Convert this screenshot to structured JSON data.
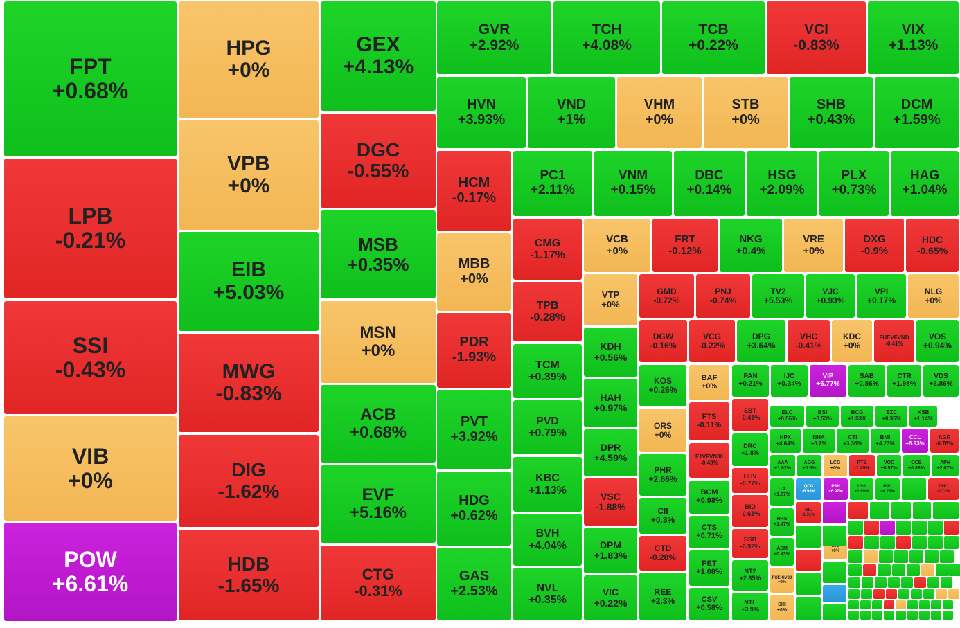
{
  "colors": {
    "up": "#17c922",
    "down": "#e82e2e",
    "reference": "#f5bd5e",
    "ceiling": "#c01bd2",
    "floor": "#3aa0e0"
  },
  "chart_data": {
    "type": "treemap",
    "title": "",
    "tiles": [
      {
        "ticker": "FPT",
        "change": "+0.68%",
        "status": "up"
      },
      {
        "ticker": "LPB",
        "change": "-0.21%",
        "status": "down"
      },
      {
        "ticker": "SSI",
        "change": "-0.43%",
        "status": "down"
      },
      {
        "ticker": "VIB",
        "change": "+0%",
        "status": "ref"
      },
      {
        "ticker": "POW",
        "change": "+6.61%",
        "status": "ceil"
      },
      {
        "ticker": "HPG",
        "change": "+0%",
        "status": "ref"
      },
      {
        "ticker": "VPB",
        "change": "+0%",
        "status": "ref"
      },
      {
        "ticker": "EIB",
        "change": "+5.03%",
        "status": "up"
      },
      {
        "ticker": "MWG",
        "change": "-0.83%",
        "status": "down"
      },
      {
        "ticker": "DIG",
        "change": "-1.62%",
        "status": "down"
      },
      {
        "ticker": "HDB",
        "change": "-1.65%",
        "status": "down"
      },
      {
        "ticker": "GEX",
        "change": "+4.13%",
        "status": "up"
      },
      {
        "ticker": "DGC",
        "change": "-0.55%",
        "status": "down"
      },
      {
        "ticker": "MSB",
        "change": "+0.35%",
        "status": "up"
      },
      {
        "ticker": "MSN",
        "change": "+0%",
        "status": "ref"
      },
      {
        "ticker": "ACB",
        "change": "+0.68%",
        "status": "up"
      },
      {
        "ticker": "EVF",
        "change": "+5.16%",
        "status": "up"
      },
      {
        "ticker": "CTG",
        "change": "-0.31%",
        "status": "down"
      },
      {
        "ticker": "GVR",
        "change": "+2.92%",
        "status": "up"
      },
      {
        "ticker": "TCH",
        "change": "+4.08%",
        "status": "up"
      },
      {
        "ticker": "TCB",
        "change": "+0.22%",
        "status": "up"
      },
      {
        "ticker": "VCI",
        "change": "-0.83%",
        "status": "down"
      },
      {
        "ticker": "VIX",
        "change": "+1.13%",
        "status": "up"
      },
      {
        "ticker": "HVN",
        "change": "+3.93%",
        "status": "up"
      },
      {
        "ticker": "VND",
        "change": "+1%",
        "status": "up"
      },
      {
        "ticker": "VHM",
        "change": "+0%",
        "status": "ref"
      },
      {
        "ticker": "STB",
        "change": "+0%",
        "status": "ref"
      },
      {
        "ticker": "SHB",
        "change": "+0.43%",
        "status": "up"
      },
      {
        "ticker": "DCM",
        "change": "+1.59%",
        "status": "up"
      },
      {
        "ticker": "HCM",
        "change": "-0.17%",
        "status": "down"
      },
      {
        "ticker": "MBB",
        "change": "+0%",
        "status": "ref"
      },
      {
        "ticker": "PDR",
        "change": "-1.93%",
        "status": "down"
      },
      {
        "ticker": "PVT",
        "change": "+3.92%",
        "status": "up"
      },
      {
        "ticker": "HDG",
        "change": "+0.62%",
        "status": "up"
      },
      {
        "ticker": "GAS",
        "change": "+2.53%",
        "status": "up"
      },
      {
        "ticker": "PC1",
        "change": "+2.11%",
        "status": "up"
      },
      {
        "ticker": "VNM",
        "change": "+0.15%",
        "status": "up"
      },
      {
        "ticker": "DBC",
        "change": "+0.14%",
        "status": "up"
      },
      {
        "ticker": "HSG",
        "change": "+2.09%",
        "status": "up"
      },
      {
        "ticker": "PLX",
        "change": "+0.73%",
        "status": "up"
      },
      {
        "ticker": "HAG",
        "change": "+1.04%",
        "status": "up"
      },
      {
        "ticker": "CMG",
        "change": "-1.17%",
        "status": "down"
      },
      {
        "ticker": "VCB",
        "change": "+0%",
        "status": "ref"
      },
      {
        "ticker": "FRT",
        "change": "-0.12%",
        "status": "down"
      },
      {
        "ticker": "NKG",
        "change": "+0.4%",
        "status": "up"
      },
      {
        "ticker": "VRE",
        "change": "+0%",
        "status": "ref"
      },
      {
        "ticker": "DXG",
        "change": "-0.9%",
        "status": "down"
      },
      {
        "ticker": "HDC",
        "change": "-0.65%",
        "status": "down"
      },
      {
        "ticker": "TPB",
        "change": "-0.28%",
        "status": "down"
      },
      {
        "ticker": "VTP",
        "change": "+0%",
        "status": "ref"
      },
      {
        "ticker": "GMD",
        "change": "-0.72%",
        "status": "down"
      },
      {
        "ticker": "PNJ",
        "change": "-0.74%",
        "status": "down"
      },
      {
        "ticker": "TV2",
        "change": "+5.53%",
        "status": "up"
      },
      {
        "ticker": "VJC",
        "change": "+0.93%",
        "status": "up"
      },
      {
        "ticker": "VPI",
        "change": "+0.17%",
        "status": "up"
      },
      {
        "ticker": "NLG",
        "change": "+0%",
        "status": "ref"
      },
      {
        "ticker": "DGW",
        "change": "-0.16%",
        "status": "down"
      },
      {
        "ticker": "VCG",
        "change": "-0.22%",
        "status": "down"
      },
      {
        "ticker": "DPG",
        "change": "+3.64%",
        "status": "up"
      },
      {
        "ticker": "VHC",
        "change": "-0.41%",
        "status": "down"
      },
      {
        "ticker": "KDC",
        "change": "+0%",
        "status": "ref"
      },
      {
        "ticker": "FUEVFVND",
        "change": "-0.41%",
        "status": "down"
      },
      {
        "ticker": "VOS",
        "change": "+0.94%",
        "status": "up"
      },
      {
        "ticker": "TCM",
        "change": "+0.39%",
        "status": "up"
      },
      {
        "ticker": "KDH",
        "change": "+0.56%",
        "status": "up"
      },
      {
        "ticker": "KOS",
        "change": "+0.26%",
        "status": "up"
      },
      {
        "ticker": "BAF",
        "change": "+0%",
        "status": "ref"
      },
      {
        "ticker": "PAN",
        "change": "+0.21%",
        "status": "up"
      },
      {
        "ticker": "IJC",
        "change": "+0.34%",
        "status": "up"
      },
      {
        "ticker": "VIP",
        "change": "+6.77%",
        "status": "ceil"
      },
      {
        "ticker": "SAB",
        "change": "+0.86%",
        "status": "up"
      },
      {
        "ticker": "CTR",
        "change": "+1.98%",
        "status": "up"
      },
      {
        "ticker": "VDS",
        "change": "+3.86%",
        "status": "up"
      },
      {
        "ticker": "PVD",
        "change": "+0.79%",
        "status": "up"
      },
      {
        "ticker": "HAH",
        "change": "+0.97%",
        "status": "up"
      },
      {
        "ticker": "ORS",
        "change": "+0%",
        "status": "ref"
      },
      {
        "ticker": "FTS",
        "change": "-0.11%",
        "status": "down"
      },
      {
        "ticker": "SBT",
        "change": "-0.41%",
        "status": "down"
      },
      {
        "ticker": "ELC",
        "change": "+0.55%",
        "status": "up"
      },
      {
        "ticker": "BSI",
        "change": "+0.53%",
        "status": "up"
      },
      {
        "ticker": "BCG",
        "change": "+1.53%",
        "status": "up"
      },
      {
        "ticker": "SZC",
        "change": "+0.35%",
        "status": "up"
      },
      {
        "ticker": "KSB",
        "change": "+1.14%",
        "status": "up"
      },
      {
        "ticker": "HPX",
        "change": "+4.64%",
        "status": "up"
      },
      {
        "ticker": "NHA",
        "change": "+0.7%",
        "status": "up"
      },
      {
        "ticker": "CTI",
        "change": "+3.36%",
        "status": "up"
      },
      {
        "ticker": "BMI",
        "change": "+4.23%",
        "status": "up"
      },
      {
        "ticker": "CCL",
        "change": "+6.93%",
        "status": "ceil"
      },
      {
        "ticker": "AGR",
        "change": "-0.76%",
        "status": "down"
      },
      {
        "ticker": "KBC",
        "change": "+1.13%",
        "status": "up"
      },
      {
        "ticker": "DPR",
        "change": "+4.59%",
        "status": "up"
      },
      {
        "ticker": "PHR",
        "change": "+2.66%",
        "status": "up"
      },
      {
        "ticker": "E1VFVN30",
        "change": "-0.49%",
        "status": "down"
      },
      {
        "ticker": "DRC",
        "change": "+1.8%",
        "status": "up"
      },
      {
        "ticker": "AAA",
        "change": "+1.82%",
        "status": "up"
      },
      {
        "ticker": "AGG",
        "change": "+0.5%",
        "status": "up"
      },
      {
        "ticker": "LCG",
        "change": "+0%",
        "status": "ref"
      },
      {
        "ticker": "PTB",
        "change": "-1.29%",
        "status": "down"
      },
      {
        "ticker": "VOC",
        "change": "+0.57%",
        "status": "up"
      },
      {
        "ticker": "OCB",
        "change": "+0.88%",
        "status": "up"
      },
      {
        "ticker": "APH",
        "change": "+2.07%",
        "status": "up"
      },
      {
        "ticker": "BVH",
        "change": "+4.04%",
        "status": "up"
      },
      {
        "ticker": "VSC",
        "change": "-1.88%",
        "status": "down"
      },
      {
        "ticker": "CII",
        "change": "+0.3%",
        "status": "up"
      },
      {
        "ticker": "BCM",
        "change": "+0.98%",
        "status": "up"
      },
      {
        "ticker": "HHV",
        "change": "-0.77%",
        "status": "down"
      },
      {
        "ticker": "ITA",
        "change": "+1.57%",
        "status": "up"
      },
      {
        "ticker": "QCG",
        "change": "-6.93%",
        "status": "floor"
      },
      {
        "ticker": "PSH",
        "change": "+6.97%",
        "status": "ceil"
      },
      {
        "ticker": "LSS",
        "change": "+1.99%",
        "status": "up"
      },
      {
        "ticker": "PPC",
        "change": "+4.23%",
        "status": "up"
      },
      {
        "ticker": "DHC",
        "change": "-0.72%",
        "status": "down"
      },
      {
        "ticker": "NVL",
        "change": "+0.35%",
        "status": "up"
      },
      {
        "ticker": "DPM",
        "change": "+1.83%",
        "status": "up"
      },
      {
        "ticker": "CTD",
        "change": "-0.28%",
        "status": "down"
      },
      {
        "ticker": "BID",
        "change": "-0.61%",
        "status": "down"
      },
      {
        "ticker": "HHS",
        "change": "+1.47%",
        "status": "up"
      },
      {
        "ticker": "GIL",
        "change": "-1.31%",
        "status": "down"
      },
      {
        "ticker": "CTS",
        "change": "+0.71%",
        "status": "up"
      },
      {
        "ticker": "SSB",
        "change": "-0.92%",
        "status": "down"
      },
      {
        "ticker": "ASM",
        "change": "+0.43%",
        "status": "up"
      },
      {
        "ticker": "SJS",
        "change": "+0%",
        "status": "ref"
      },
      {
        "ticker": "VIC",
        "change": "+0.22%",
        "status": "up"
      },
      {
        "ticker": "PET",
        "change": "+1.08%",
        "status": "up"
      },
      {
        "ticker": "NT2",
        "change": "+2.65%",
        "status": "up"
      },
      {
        "ticker": "FUEKIV30",
        "change": "+0%",
        "status": "ref"
      },
      {
        "ticker": "REE",
        "change": "+2.3%",
        "status": "up"
      },
      {
        "ticker": "CSV",
        "change": "+0.58%",
        "status": "up"
      },
      {
        "ticker": "NTL",
        "change": "+3.9%",
        "status": "up"
      },
      {
        "ticker": "SHI",
        "change": "+0%",
        "status": "ref"
      }
    ],
    "small_tiles": [
      "up",
      "down",
      "up",
      "up",
      "ceil",
      "up",
      "up",
      "floor",
      "up",
      "up",
      "down",
      "up",
      "up",
      "up",
      "up",
      "up",
      "down",
      "ceil",
      "up",
      "up",
      "up",
      "down",
      "down",
      "up",
      "up",
      "down",
      "up",
      "up",
      "up",
      "up",
      "ref",
      "up",
      "up",
      "up",
      "up",
      "up",
      "up",
      "down",
      "up",
      "up",
      "up",
      "ref",
      "up",
      "up",
      "up",
      "up",
      "up",
      "up",
      "up",
      "down",
      "up",
      "up",
      "up",
      "up",
      "down",
      "down",
      "up",
      "up",
      "up",
      "ref",
      "ref",
      "up",
      "up",
      "up",
      "down",
      "ref",
      "up",
      "up",
      "up",
      "up",
      "up",
      "up",
      "up",
      "up",
      "up",
      "up",
      "up",
      "up",
      "up",
      "down",
      "up",
      "up",
      "up",
      "down",
      "up",
      "up",
      "up",
      "up",
      "up",
      "up",
      "up",
      "up",
      "up",
      "up",
      "down",
      "up",
      "up",
      "up",
      "up",
      "up",
      "up",
      "down",
      "up",
      "up",
      "up",
      "up",
      "up",
      "up",
      "up",
      "up",
      "up",
      "up",
      "up",
      "down",
      "up",
      "up",
      "up",
      "up",
      "up",
      "up",
      "ref",
      "up",
      "up",
      "up",
      "up",
      "down",
      "up",
      "up",
      "up",
      "up",
      "up",
      "up",
      "up",
      "up",
      "up",
      "up",
      "up",
      "down",
      "up",
      "up",
      "up",
      "up",
      "up",
      "up",
      "up",
      "up",
      "up",
      "up",
      "up",
      "down",
      "down",
      "up",
      "up",
      "up",
      "ref",
      "up",
      "up",
      "up",
      "down",
      "up",
      "up",
      "up",
      "down",
      "up",
      "up",
      "up",
      "up",
      "up",
      "up",
      "up",
      "up"
    ]
  }
}
